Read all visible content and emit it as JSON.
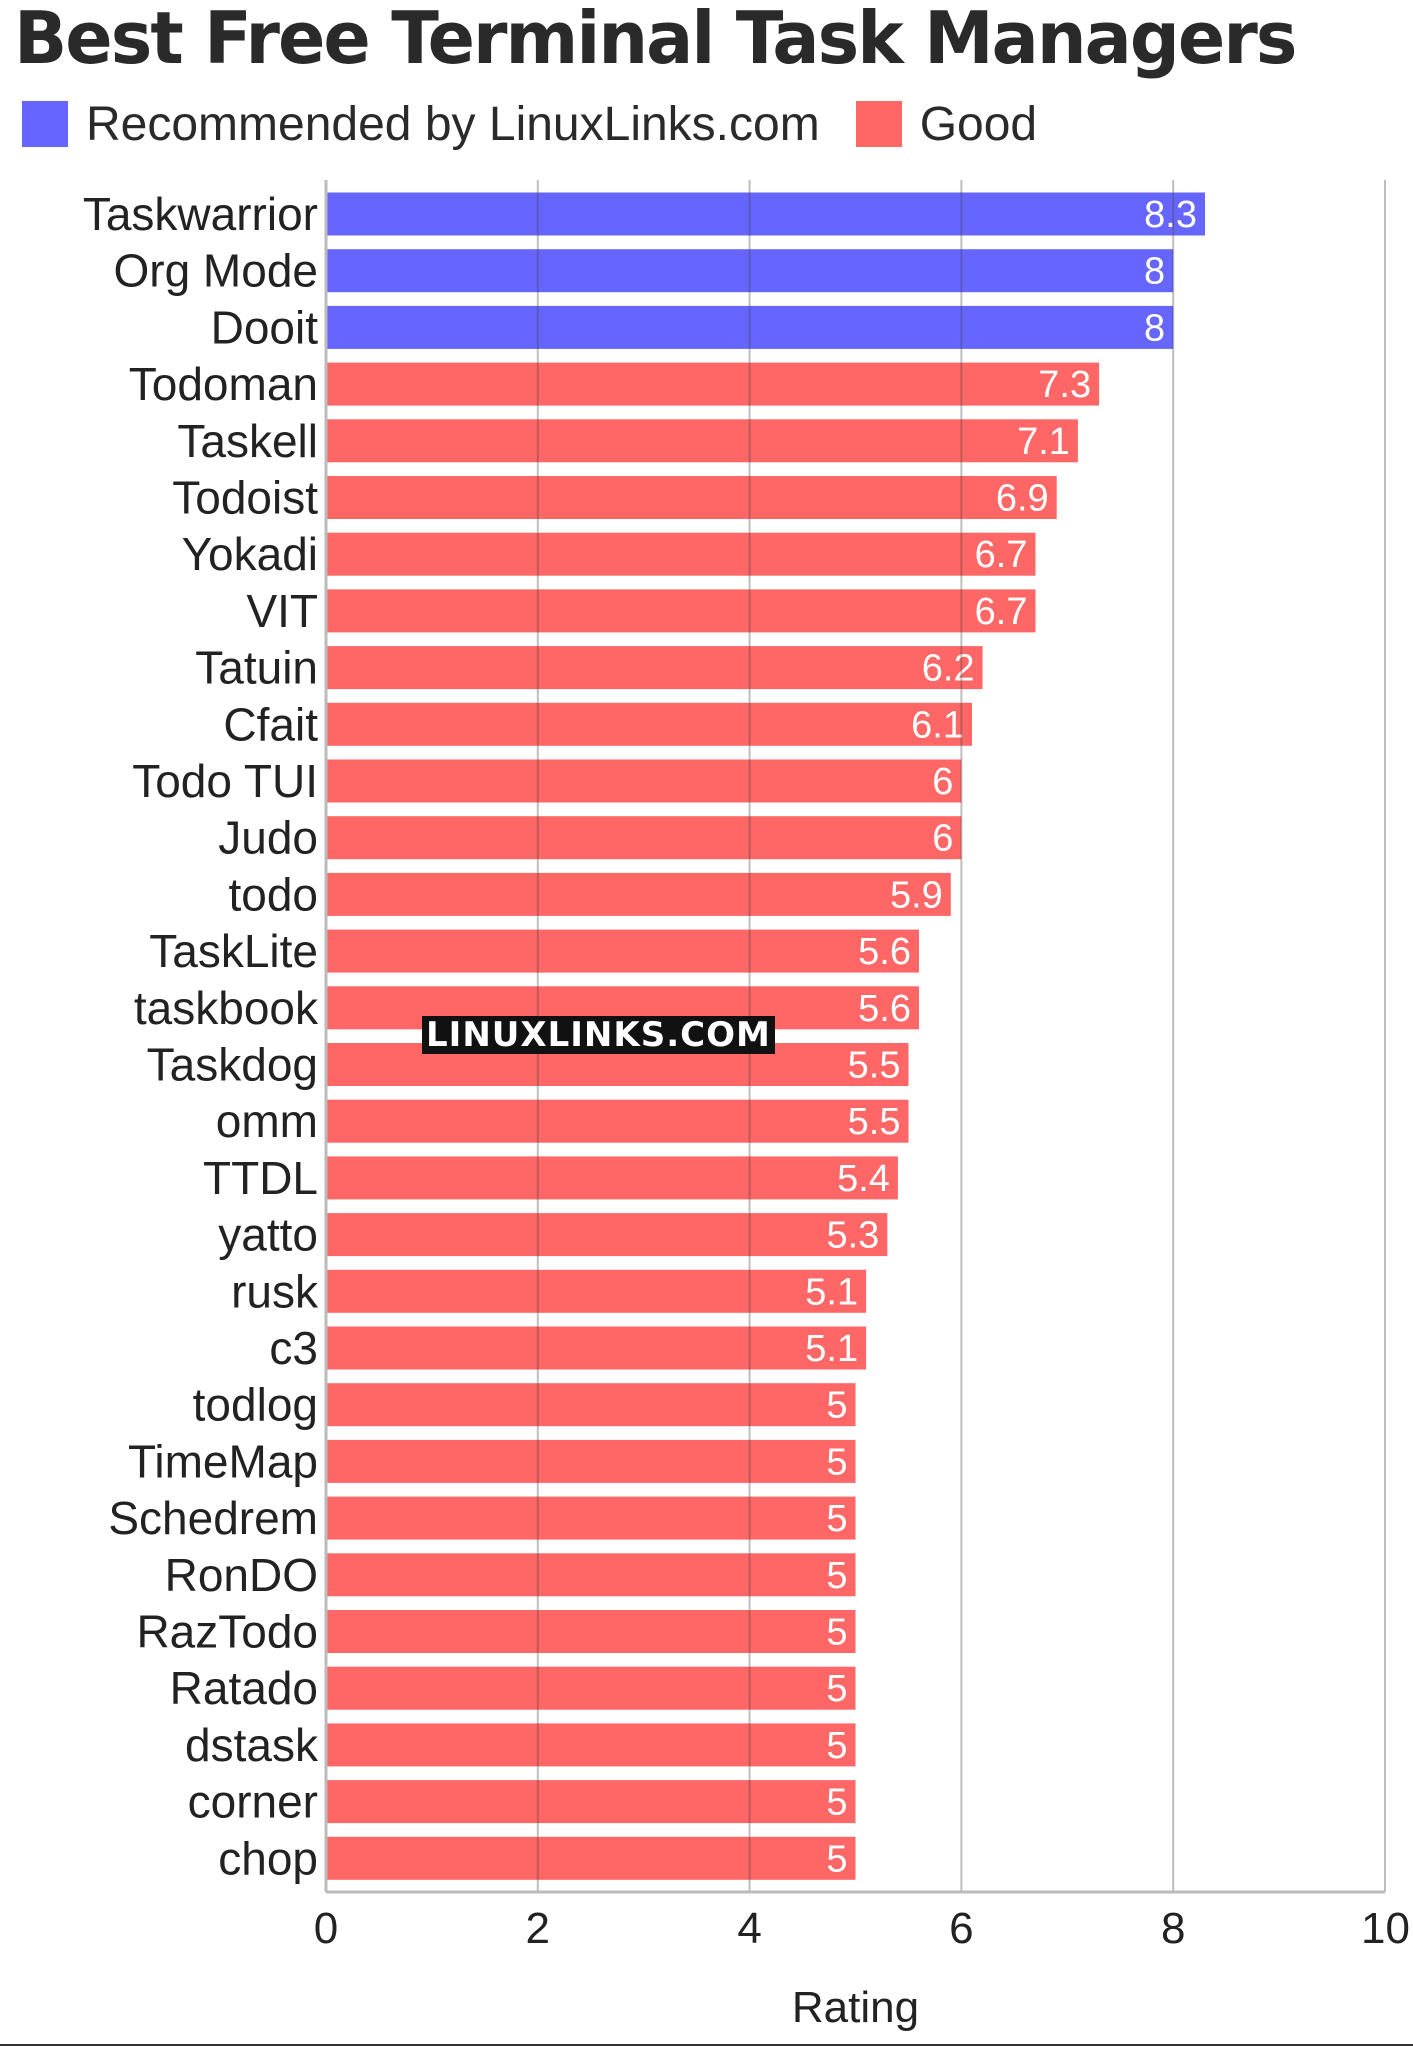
{
  "colors": {
    "recommended": "#6666ff",
    "good": "#ff6666",
    "grid": "#bbbbbb",
    "value_text": "#ffffff"
  },
  "chart_data": {
    "type": "bar",
    "orientation": "horizontal",
    "title": "Best Free Terminal Task Managers",
    "xlabel": "Rating",
    "ylabel": "",
    "xlim": [
      0,
      10
    ],
    "xticks": [
      0,
      2,
      4,
      6,
      8,
      10
    ],
    "grid": true,
    "legend": {
      "placement": "top-left",
      "entries": [
        {
          "key": "recommended",
          "label": "Recommended by LinuxLinks.com"
        },
        {
          "key": "good",
          "label": "Good"
        }
      ]
    },
    "categories": [
      "Taskwarrior",
      "Org Mode",
      "Dooit",
      "Todoman",
      "Taskell",
      "Todoist",
      "Yokadi",
      "VIT",
      "Tatuin",
      "Cfait",
      "Todo TUI",
      "Judo",
      "todo",
      "TaskLite",
      "taskbook",
      "Taskdog",
      "omm",
      "TTDL",
      "yatto",
      "rusk",
      "c3",
      "todlog",
      "TimeMap",
      "Schedrem",
      "RonDO",
      "RazTodo",
      "Ratado",
      "dstask",
      "corner",
      "chop"
    ],
    "values": [
      8.3,
      8,
      8,
      7.3,
      7.1,
      6.9,
      6.7,
      6.7,
      6.2,
      6.1,
      6,
      6,
      5.9,
      5.6,
      5.6,
      5.5,
      5.5,
      5.4,
      5.3,
      5.1,
      5.1,
      5,
      5,
      5,
      5,
      5,
      5,
      5,
      5,
      5
    ],
    "groups": [
      "recommended",
      "recommended",
      "recommended",
      "good",
      "good",
      "good",
      "good",
      "good",
      "good",
      "good",
      "good",
      "good",
      "good",
      "good",
      "good",
      "good",
      "good",
      "good",
      "good",
      "good",
      "good",
      "good",
      "good",
      "good",
      "good",
      "good",
      "good",
      "good",
      "good",
      "good"
    ]
  },
  "watermark": "LINUXLINKS.COM"
}
